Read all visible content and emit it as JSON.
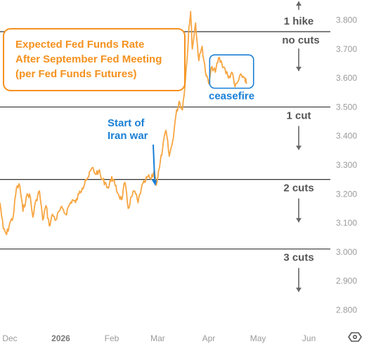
{
  "chart_data": {
    "type": "line",
    "title_lines": [
      "Expected Fed Funds Rate",
      "After September Fed Meeting",
      "(per Fed Funds Futures)"
    ],
    "y_ticks": [
      "3.800",
      "3.700",
      "3.600",
      "3.500",
      "3.400",
      "3.300",
      "3.200",
      "3.100",
      "3.000",
      "2.900",
      "2.800"
    ],
    "x_ticks": [
      "Dec",
      "2026",
      "Feb",
      "Mar",
      "Apr",
      "May",
      "Jun"
    ],
    "ylim": [
      2.75,
      3.85
    ],
    "xlim": [
      "2025-11-25",
      "2026-06-14"
    ],
    "grid": false,
    "line_color": "#f7a541",
    "series": [
      {
        "x": [
          "2025-11-25",
          "2025-11-27",
          "2025-11-29",
          "2025-12-01",
          "2025-12-03",
          "2025-12-05",
          "2025-12-07",
          "2025-12-09",
          "2025-12-11",
          "2025-12-13",
          "2025-12-15",
          "2025-12-17",
          "2025-12-19",
          "2025-12-21",
          "2025-12-23",
          "2025-12-25",
          "2025-12-27",
          "2025-12-29",
          "2025-12-31",
          "2026-01-02",
          "2026-01-04",
          "2026-01-06",
          "2026-01-08",
          "2026-01-10",
          "2026-01-12",
          "2026-01-14",
          "2026-01-16",
          "2026-01-18",
          "2026-01-20",
          "2026-01-22",
          "2026-01-24",
          "2026-01-26",
          "2026-01-28",
          "2026-01-30",
          "2026-02-01",
          "2026-02-03",
          "2026-02-05",
          "2026-02-07",
          "2026-02-09",
          "2026-02-11",
          "2026-02-13",
          "2026-02-15",
          "2026-02-17",
          "2026-02-19",
          "2026-02-21",
          "2026-02-23",
          "2026-02-25",
          "2026-02-27",
          "2026-02-28",
          "2026-03-02",
          "2026-03-04",
          "2026-03-06",
          "2026-03-08",
          "2026-03-10",
          "2026-03-12",
          "2026-03-14",
          "2026-03-16",
          "2026-03-18",
          "2026-03-19",
          "2026-03-20",
          "2026-03-21",
          "2026-03-22",
          "2026-03-24",
          "2026-03-25",
          "2026-03-26",
          "2026-03-28",
          "2026-03-30",
          "2026-04-01",
          "2026-04-03",
          "2026-04-05",
          "2026-04-07",
          "2026-04-09",
          "2026-04-11",
          "2026-04-13",
          "2026-04-15",
          "2026-04-17",
          "2026-04-19",
          "2026-04-21",
          "2026-04-23",
          "2026-04-24"
        ],
        "values": [
          3.17,
          3.08,
          3.06,
          3.1,
          3.12,
          3.22,
          3.23,
          3.14,
          3.19,
          3.2,
          3.12,
          3.18,
          3.21,
          3.11,
          3.16,
          3.09,
          3.13,
          3.11,
          3.14,
          3.15,
          3.13,
          3.16,
          3.18,
          3.17,
          3.2,
          3.22,
          3.25,
          3.26,
          3.29,
          3.27,
          3.28,
          3.25,
          3.24,
          3.22,
          3.26,
          3.23,
          3.2,
          3.18,
          3.24,
          3.15,
          3.19,
          3.21,
          3.17,
          3.22,
          3.24,
          3.26,
          3.25,
          3.28,
          3.23,
          3.29,
          3.36,
          3.42,
          3.33,
          3.38,
          3.47,
          3.52,
          3.49,
          3.61,
          3.68,
          3.78,
          3.83,
          3.7,
          3.79,
          3.72,
          3.66,
          3.71,
          3.62,
          3.58,
          3.64,
          3.62,
          3.67,
          3.65,
          3.63,
          3.6,
          3.62,
          3.57,
          3.59,
          3.61,
          3.6,
          3.58
        ]
      }
    ],
    "scenario_lines": [
      {
        "y": 3.76,
        "label": "1 hike",
        "label_above": "1 hike",
        "label_below": "no cuts"
      },
      {
        "y": 3.5,
        "label": "1 cut"
      },
      {
        "y": 3.25,
        "label": "2 cuts"
      },
      {
        "y": 3.01,
        "label": "3 cuts"
      }
    ],
    "annotations": [
      {
        "text_lines": [
          "Start of",
          "Iran war"
        ],
        "color": "#1a7fd6",
        "points_to": {
          "x": "2026-02-28",
          "y": 3.23
        }
      },
      {
        "text": "ceasefire",
        "color": "#1a7fd6",
        "box_x_range": [
          "2026-04-05",
          "2026-04-24"
        ],
        "box_y_range": [
          3.565,
          3.68
        ]
      }
    ]
  }
}
